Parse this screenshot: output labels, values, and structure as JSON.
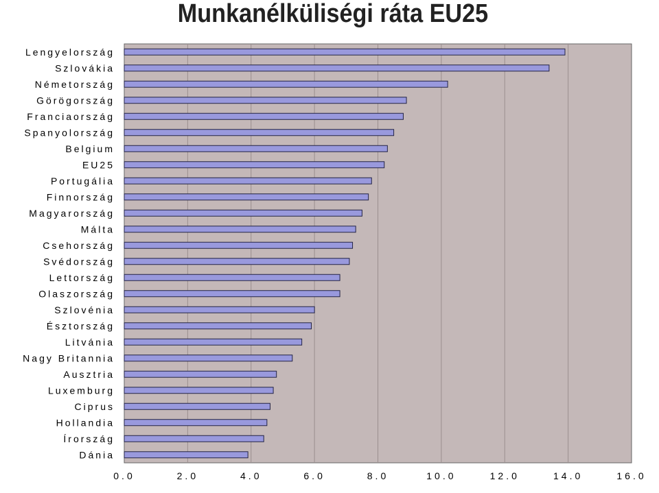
{
  "chart_data": {
    "type": "bar",
    "orientation": "horizontal",
    "title": "Munkanélküliségi ráta EU25",
    "categories": [
      "Lengyelország",
      "Szlovákia",
      "Németország",
      "Görögország",
      "Franciaország",
      "Spanyolország",
      "Belgium",
      "EU25",
      "Portugália",
      "Finnország",
      "Magyarország",
      "Málta",
      "Csehország",
      "Svédország",
      "Lettország",
      "Olaszország",
      "Szlovénia",
      "Észtország",
      "Litvánia",
      "Nagy Britannia",
      "Ausztria",
      "Luxemburg",
      "Ciprus",
      "Hollandia",
      "Írország",
      "Dánia"
    ],
    "values": [
      13.9,
      13.4,
      10.2,
      8.9,
      8.8,
      8.5,
      8.3,
      8.2,
      7.8,
      7.7,
      7.5,
      7.3,
      7.2,
      7.1,
      6.8,
      6.8,
      6.0,
      5.9,
      5.6,
      5.3,
      4.8,
      4.7,
      4.6,
      4.5,
      4.4,
      3.9
    ],
    "xlim": [
      0,
      16
    ],
    "xticks": [
      "0.0",
      "2.0",
      "4.0",
      "6.0",
      "8.0",
      "10.0",
      "12.0",
      "14.0",
      "16.0"
    ],
    "xlabel": "",
    "ylabel": "",
    "grid": "vertical",
    "legend": "none",
    "colors": {
      "bar_fill": "#9999dd",
      "bar_stroke": "#222244",
      "plot_background": "#c4b8b8",
      "gridline": "#9a8e8e",
      "frame": "#666666"
    }
  }
}
